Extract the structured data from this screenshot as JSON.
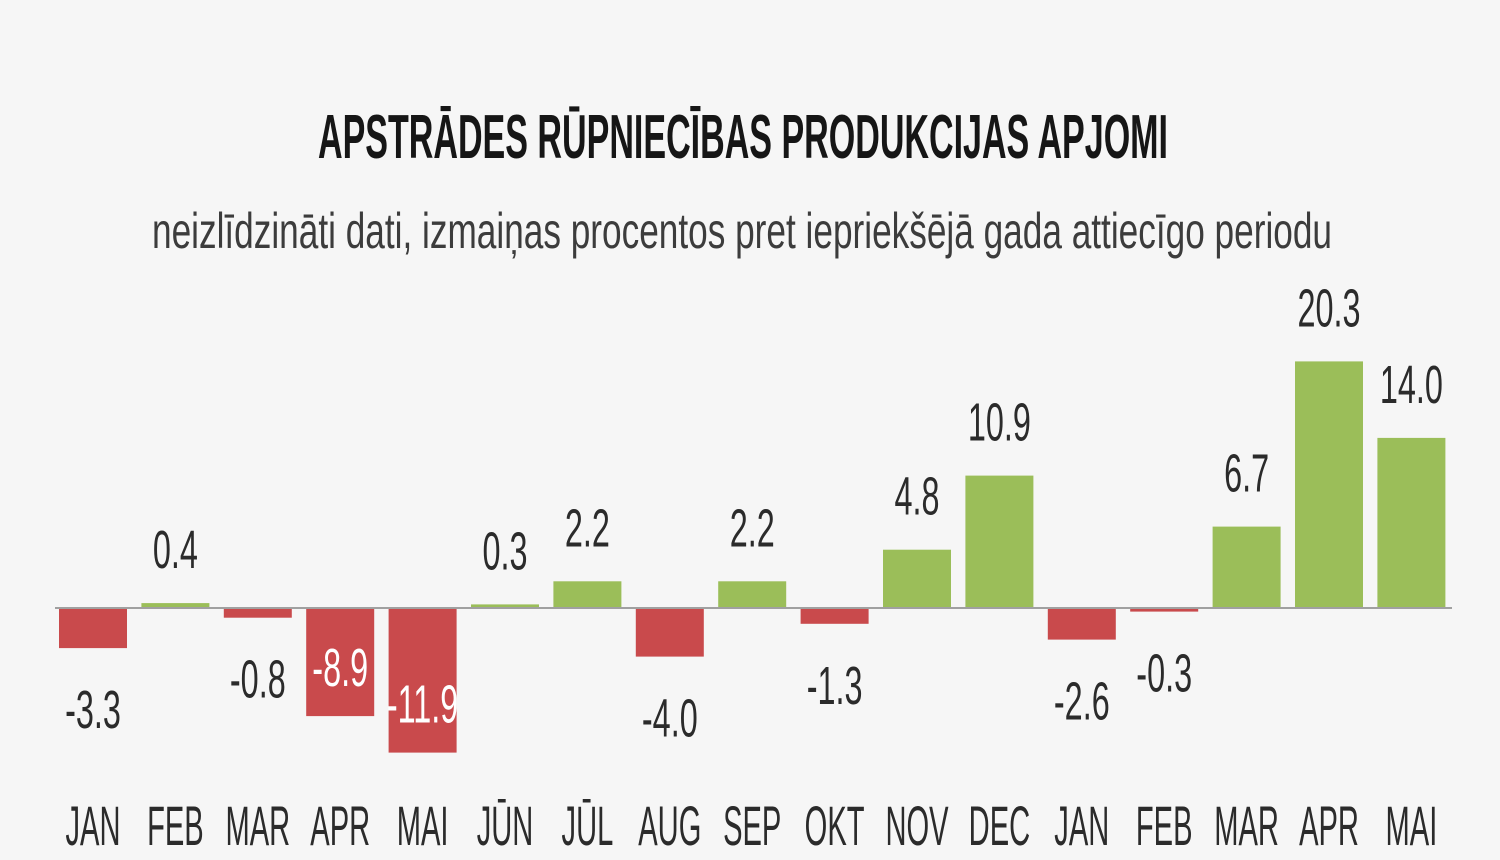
{
  "chart_data": {
    "type": "bar",
    "title": "APSTRĀDES RŪPNIECĪBAS PRODUKCIJAS APJOMI",
    "subtitle": "neizlīdzināti dati, izmaiņas procentos pret iepriekšējā gada attiecīgo periodu",
    "categories": [
      "JAN",
      "FEB",
      "MAR",
      "APR",
      "MAI",
      "JŪN",
      "JŪL",
      "AUG",
      "SEP",
      "OKT",
      "NOV",
      "DEC",
      "JAN",
      "FEB",
      "MAR",
      "APR",
      "MAI"
    ],
    "values": [
      -3.3,
      0.4,
      -0.8,
      -8.9,
      -11.9,
      0.3,
      2.2,
      -4.0,
      2.2,
      -1.3,
      4.8,
      10.9,
      -2.6,
      -0.3,
      6.7,
      20.3,
      14.0
    ],
    "value_labels": [
      "-3.3",
      "0.4",
      "-0.8",
      "-8.9",
      "-11.9",
      "0.3",
      "2.2",
      "-4.0",
      "2.2",
      "-1.3",
      "4.8",
      "10.9",
      "-2.6",
      "-0.3",
      "6.7",
      "20.3",
      "14.0"
    ],
    "ylim": [
      -12,
      21
    ],
    "colors": {
      "positive": "#9bbe59",
      "negative": "#c94a4c",
      "zero_line": "#a0a0a0",
      "label": "#2b2b2b",
      "label_inside": "#ffffff"
    }
  }
}
